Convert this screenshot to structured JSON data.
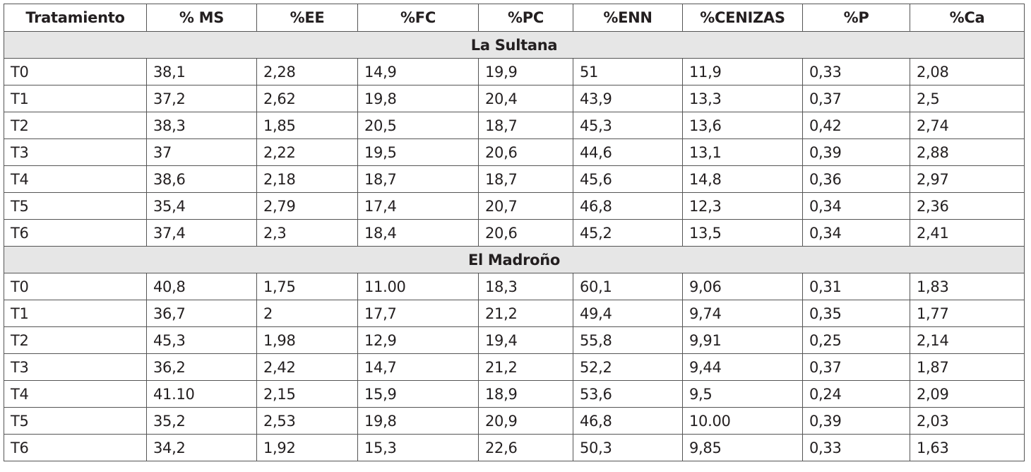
{
  "table": {
    "columns": [
      "Tratamiento",
      "% MS",
      "%EE",
      "%FC",
      "%PC",
      "%ENN",
      "%CENIZAS",
      "%P",
      "%Ca"
    ],
    "sections": [
      {
        "title": "La Sultana",
        "rows": [
          [
            "T0",
            "38,1",
            "2,28",
            "14,9",
            "19,9",
            "51",
            "11,9",
            "0,33",
            "2,08"
          ],
          [
            "T1",
            "37,2",
            "2,62",
            "19,8",
            "20,4",
            "43,9",
            "13,3",
            "0,37",
            "2,5"
          ],
          [
            "T2",
            "38,3",
            "1,85",
            "20,5",
            "18,7",
            "45,3",
            "13,6",
            "0,42",
            "2,74"
          ],
          [
            "T3",
            "37",
            "2,22",
            "19,5",
            "20,6",
            "44,6",
            "13,1",
            "0,39",
            "2,88"
          ],
          [
            "T4",
            "38,6",
            "2,18",
            "18,7",
            "18,7",
            "45,6",
            "14,8",
            "0,36",
            "2,97"
          ],
          [
            "T5",
            "35,4",
            "2,79",
            "17,4",
            "20,7",
            "46,8",
            "12,3",
            "0,34",
            "2,36"
          ],
          [
            "T6",
            "37,4",
            "2,3",
            "18,4",
            "20,6",
            "45,2",
            "13,5",
            "0,34",
            "2,41"
          ]
        ]
      },
      {
        "title": "El Madroño",
        "rows": [
          [
            "T0",
            "40,8",
            "1,75",
            "11.00",
            "18,3",
            "60,1",
            "9,06",
            "0,31",
            "1,83"
          ],
          [
            "T1",
            "36,7",
            "2",
            "17,7",
            "21,2",
            "49,4",
            "9,74",
            "0,35",
            "1,77"
          ],
          [
            "T2",
            "45,3",
            "1,98",
            "12,9",
            "19,4",
            "55,8",
            "9,91",
            "0,25",
            "2,14"
          ],
          [
            "T3",
            "36,2",
            "2,42",
            "14,7",
            "21,2",
            "52,2",
            "9,44",
            "0,37",
            "1,87"
          ],
          [
            "T4",
            "41.10",
            "2,15",
            "15,9",
            "18,9",
            "53,6",
            "9,5",
            "0,24",
            "2,09"
          ],
          [
            "T5",
            "35,2",
            "2,53",
            "19,8",
            "20,9",
            "46,8",
            "10.00",
            "0,39",
            "2,03"
          ],
          [
            "T6",
            "34,2",
            "1,92",
            "15,3",
            "22,6",
            "50,3",
            "9,85",
            "0,33",
            "1,63"
          ]
        ]
      }
    ]
  }
}
